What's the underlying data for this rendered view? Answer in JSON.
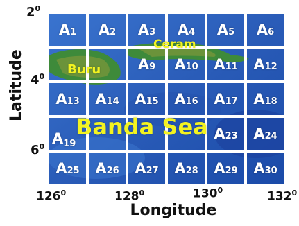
{
  "axes": {
    "ylabel": "Latitude",
    "xlabel": "Longitude",
    "yticks": [
      {
        "base": "2",
        "sup": "0"
      },
      {
        "base": "4",
        "sup": "0"
      },
      {
        "base": "6",
        "sup": "0"
      }
    ],
    "xticks": [
      {
        "base": "126",
        "sup": "0"
      },
      {
        "base": "128",
        "sup": "0"
      },
      {
        "base": "130",
        "sup": "0"
      },
      {
        "base": "132",
        "sup": "0"
      }
    ]
  },
  "places": {
    "ceram": "Ceram",
    "buru": "Buru",
    "banda_sea": "Banda Sea"
  },
  "cells": [
    "1",
    "2",
    "3",
    "4",
    "5",
    "6",
    "",
    "",
    "9",
    "10",
    "11",
    "12",
    "13",
    "14",
    "15",
    "16",
    "17",
    "18",
    "19",
    "",
    "",
    "",
    "23",
    "24",
    "25",
    "26",
    "27",
    "28",
    "29",
    "30"
  ],
  "cell_letter": "A",
  "colors": {
    "sea": "#2e63bd",
    "sea_deep": "#143e9c",
    "land": "#3e8a3a",
    "label": "#f3f320",
    "grid": "#ffffff"
  }
}
